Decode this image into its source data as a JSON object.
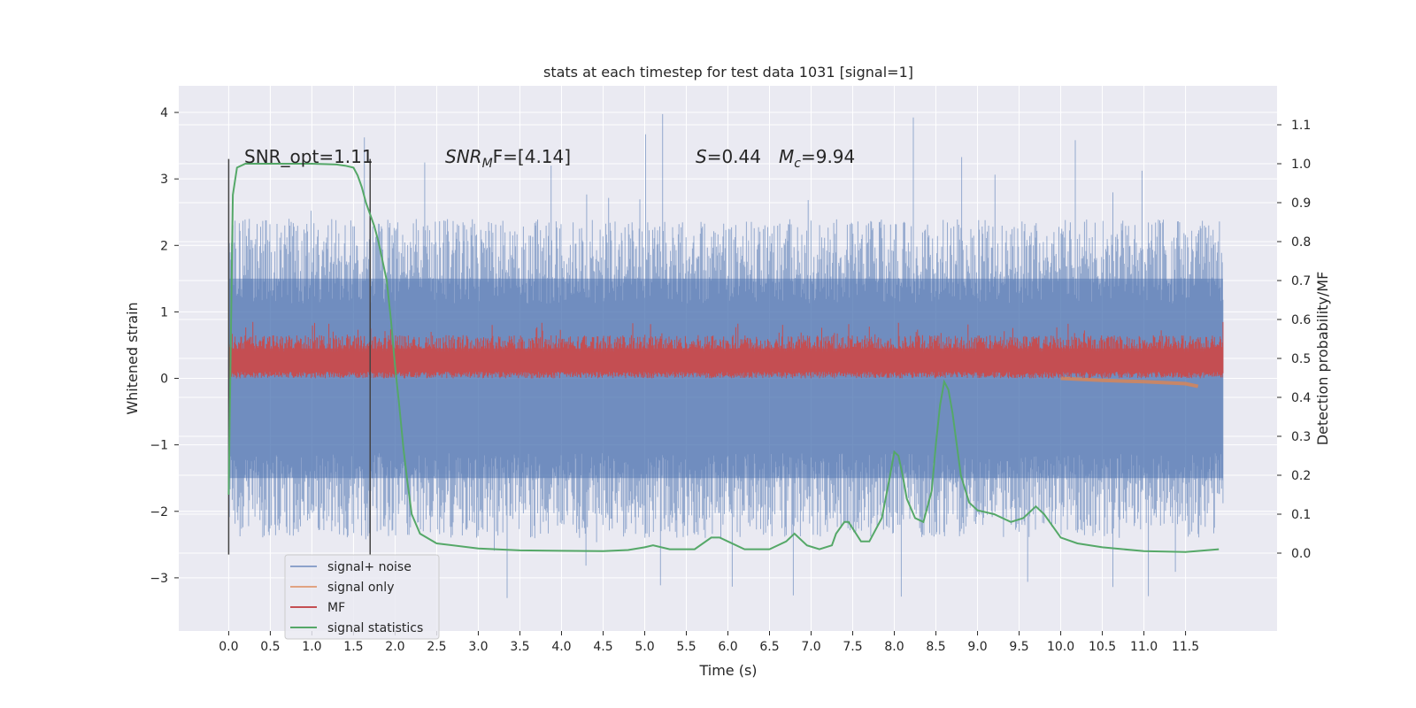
{
  "chart_data": {
    "type": "line",
    "title": "stats at each timestep for test data 1031 [signal=1]",
    "xlabel": "Time (s)",
    "ylabel": "Whitened strain",
    "ylabel_right": "Detection probability/MF",
    "xlim": [
      -0.6,
      12.6
    ],
    "ylim": [
      -3.8,
      4.4
    ],
    "ylim_right": [
      -0.2,
      1.2
    ],
    "x_ticks": [
      "0.0",
      "0.5",
      "1.0",
      "1.5",
      "2.0",
      "2.5",
      "3.0",
      "3.5",
      "4.0",
      "4.5",
      "5.0",
      "5.5",
      "6.0",
      "6.5",
      "7.0",
      "7.5",
      "8.0",
      "8.5",
      "9.0",
      "9.5",
      "10.0",
      "10.5",
      "11.0",
      "11.5"
    ],
    "y_ticks": [
      "−3",
      "−2",
      "−1",
      "0",
      "1",
      "2",
      "3",
      "4"
    ],
    "y_ticks_right": [
      "0.0",
      "0.1",
      "0.2",
      "0.3",
      "0.4",
      "0.5",
      "0.6",
      "0.7",
      "0.8",
      "0.9",
      "1.0",
      "1.1"
    ],
    "grid": true,
    "legend_position": "lower-left",
    "colors": {
      "background": "#eaeaf2",
      "grid": "#ffffff",
      "signal_noise": "#4c72b0",
      "signal_only": "#dd8452",
      "mf": "#c44e52",
      "signal_statistics": "#55a868",
      "markers": "#444444"
    },
    "annotations": {
      "snr_opt": "SNR_opt=1.11",
      "snr_mf_prefix": "SNR",
      "snr_mf_sub": "M",
      "snr_mf_suffix": "F=[4.14]",
      "s_label": "S",
      "s_value": "=0.44",
      "mc_label": "M",
      "mc_sub": "c",
      "mc_value": "=9.94"
    },
    "vertical_markers": [
      0.0,
      1.7
    ],
    "series": [
      {
        "name": "signal+ noise",
        "axis": "left",
        "style": "noise band",
        "envelope_typical": [
          -1.5,
          1.5
        ],
        "envelope_peak": [
          -3.4,
          4.1
        ]
      },
      {
        "name": "signal only",
        "axis": "left",
        "x": [
          10.0,
          10.5,
          11.0,
          11.5,
          11.65
        ],
        "y": [
          0.0,
          -0.03,
          -0.05,
          -0.08,
          -0.12
        ]
      },
      {
        "name": "MF",
        "axis": "left",
        "style": "band",
        "envelope": [
          0.0,
          0.75
        ]
      },
      {
        "name": "signal statistics",
        "axis": "right",
        "x": [
          0.0,
          0.05,
          0.1,
          0.15,
          0.2,
          0.3,
          0.5,
          0.8,
          1.0,
          1.3,
          1.4,
          1.5,
          1.55,
          1.6,
          1.65,
          1.7,
          1.75,
          1.8,
          1.9,
          1.95,
          2.0,
          2.05,
          2.1,
          2.15,
          2.2,
          2.3,
          2.5,
          3.0,
          3.5,
          4.0,
          4.5,
          4.8,
          5.0,
          5.1,
          5.3,
          5.6,
          5.8,
          5.9,
          6.0,
          6.2,
          6.5,
          6.7,
          6.8,
          6.95,
          7.1,
          7.25,
          7.3,
          7.4,
          7.45,
          7.6,
          7.7,
          7.85,
          7.95,
          8.0,
          8.05,
          8.1,
          8.15,
          8.25,
          8.35,
          8.45,
          8.5,
          8.55,
          8.6,
          8.65,
          8.7,
          8.75,
          8.8,
          8.9,
          9.0,
          9.2,
          9.4,
          9.55,
          9.7,
          9.8,
          10.0,
          10.2,
          10.5,
          11.0,
          11.5,
          11.9
        ],
        "y": [
          0.15,
          0.92,
          0.99,
          0.995,
          1.0,
          1.0,
          1.0,
          1.0,
          1.0,
          0.998,
          0.995,
          0.99,
          0.97,
          0.94,
          0.9,
          0.87,
          0.84,
          0.8,
          0.7,
          0.6,
          0.48,
          0.38,
          0.27,
          0.18,
          0.1,
          0.05,
          0.025,
          0.012,
          0.007,
          0.006,
          0.005,
          0.008,
          0.015,
          0.02,
          0.01,
          0.01,
          0.04,
          0.04,
          0.03,
          0.01,
          0.01,
          0.03,
          0.05,
          0.02,
          0.01,
          0.02,
          0.05,
          0.08,
          0.08,
          0.03,
          0.03,
          0.09,
          0.2,
          0.26,
          0.25,
          0.2,
          0.14,
          0.09,
          0.08,
          0.16,
          0.28,
          0.38,
          0.44,
          0.42,
          0.36,
          0.28,
          0.2,
          0.13,
          0.11,
          0.1,
          0.08,
          0.09,
          0.12,
          0.1,
          0.04,
          0.025,
          0.015,
          0.005,
          0.003,
          0.01
        ]
      }
    ]
  }
}
